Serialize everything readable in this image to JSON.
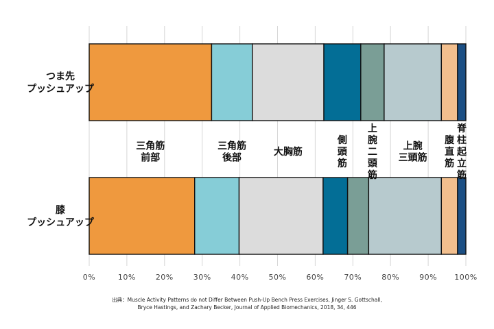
{
  "chart_data": {
    "type": "bar",
    "orientation": "horizontal",
    "stacked": true,
    "categories": [
      [
        "つま先",
        "プッシュアップ"
      ],
      [
        "膝",
        "プッシュアップ"
      ]
    ],
    "series": [
      {
        "name": [
          "三角筋",
          "前部"
        ],
        "values": [
          32.5,
          28.0
        ],
        "color": "#EF993E"
      },
      {
        "name": [
          "三角筋",
          "後部"
        ],
        "values": [
          10.8,
          11.8
        ],
        "color": "#86CDD7"
      },
      {
        "name": [
          "大胸筋"
        ],
        "values": [
          19.0,
          22.3
        ],
        "color": "#DCDCDC"
      },
      {
        "name": [
          "側",
          "頭",
          "筋"
        ],
        "values": [
          9.8,
          6.5
        ],
        "color": "#036E96"
      },
      {
        "name": [
          "上",
          "腕",
          "二",
          "頭",
          "筋"
        ],
        "values": [
          6.2,
          5.6
        ],
        "color": "#7A9E96"
      },
      {
        "name": [
          "上腕",
          "三頭筋"
        ],
        "values": [
          15.2,
          19.3
        ],
        "color": "#B7CACE"
      },
      {
        "name": [
          "腹",
          "直",
          "筋"
        ],
        "values": [
          4.3,
          4.3
        ],
        "color": "#F2BF8E"
      },
      {
        "name": [
          "脊",
          "柱",
          "起",
          "立",
          "筋"
        ],
        "values": [
          2.2,
          2.2
        ],
        "color": "#1B4F84"
      }
    ],
    "xlim": [
      0,
      100
    ],
    "xticks": [
      "0%",
      "10%",
      "20%",
      "30%",
      "40%",
      "50%",
      "60%",
      "70%",
      "80%",
      "90%",
      "100%"
    ],
    "grid": true,
    "legend": "between-bars"
  },
  "source": {
    "line1": "出典：Muscle Activity Patterns do not Differ Between Push-Up Bench Press Exercises, Jinger S. Gottschall,",
    "line2": "Bryce Hastings, and Zachary Becker, Journal of Applied Biomechanics, 2018, 34, 446"
  }
}
